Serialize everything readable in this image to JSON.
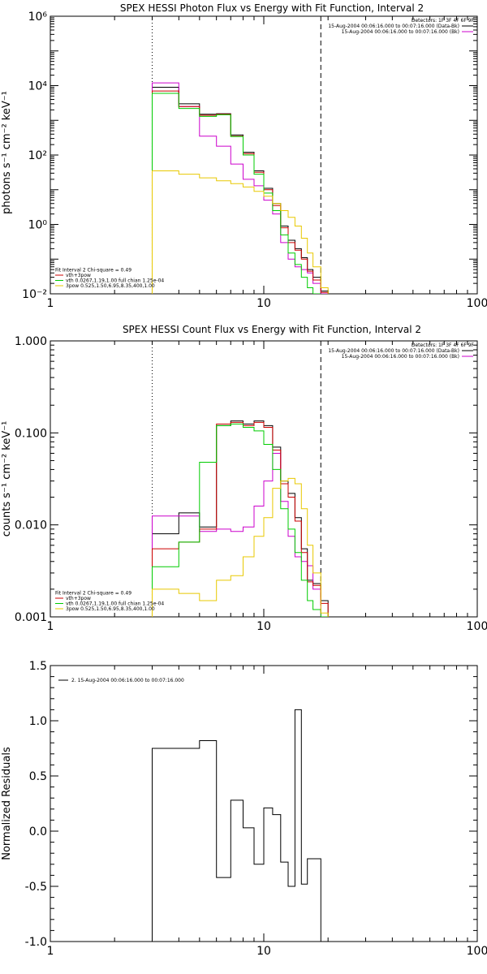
{
  "chart_data": [
    {
      "type": "line",
      "title": "SPEX HESSI Photon Flux vs Energy with Fit Function, Interval 2",
      "ylabel": "photons s⁻¹ cm⁻² keV⁻¹",
      "xlabel": "",
      "xscale": "log",
      "yscale": "log",
      "xlim": [
        1,
        100
      ],
      "ylim": [
        0.01,
        1000000
      ],
      "xticks": [
        "1",
        "10",
        "100"
      ],
      "yticks": [
        "10⁻²",
        "10⁰",
        "10²",
        "10⁴",
        "10⁶"
      ],
      "vlines": [
        {
          "x": 3,
          "style": "dotted"
        },
        {
          "x": 18.5,
          "style": "dashed"
        }
      ],
      "legend_top": {
        "header": "Detectors: 1F 3F 4F 6F 9F",
        "entries": [
          {
            "text": "15-Aug-2004 00:06:16.000 to 00:07:16.000 (Data-Bk)",
            "color": "#000000"
          },
          {
            "text": "15-Aug-2004 00:06:16.000 to 00:07:16.000 (Bk)",
            "color": "#cc00cc"
          }
        ]
      },
      "legend_bottom": {
        "header": "Fit Interval 2   Chi-square = 0.49",
        "entries": [
          {
            "text": "vth+3pow",
            "color": "#cc0000"
          },
          {
            "text": "vth 0.0267,1.19,1.00  full chian 1.25e-04",
            "color": "#00cc00"
          },
          {
            "text": "3pow 0.525,1.50,6.95,8.35,400,1.00",
            "color": "#e8c800"
          }
        ]
      },
      "bin_edges": [
        3,
        4,
        5,
        6,
        7,
        8,
        9,
        10,
        11,
        12,
        13,
        14,
        15,
        16,
        17,
        18.5,
        20,
        22
      ],
      "series": [
        {
          "name": "Data-Bk",
          "color": "#000000",
          "values": [
            9000,
            3000,
            1500,
            1550,
            380,
            120,
            35,
            11,
            4,
            0.9,
            0.35,
            0.2,
            0.11,
            0.05,
            0.03,
            0.012,
            null
          ]
        },
        {
          "name": "Bk",
          "color": "#cc00cc",
          "values": [
            12000,
            2500,
            350,
            180,
            55,
            20,
            13,
            5,
            2,
            0.3,
            0.1,
            0.06,
            0.05,
            0.04,
            0.02,
            0.008,
            null
          ]
        },
        {
          "name": "vth+3pow",
          "color": "#cc0000",
          "values": [
            7000,
            2500,
            1400,
            1500,
            350,
            110,
            32,
            10,
            3.5,
            0.8,
            0.3,
            0.18,
            0.1,
            0.045,
            0.025,
            0.011,
            null
          ]
        },
        {
          "name": "vth",
          "color": "#00cc00",
          "values": [
            6000,
            2200,
            1300,
            1450,
            340,
            100,
            28,
            8,
            2.5,
            0.5,
            0.15,
            0.07,
            0.03,
            0.015,
            0.008,
            null,
            null
          ]
        },
        {
          "name": "3pow",
          "color": "#e8c800",
          "values": [
            35,
            28,
            22,
            18,
            15,
            12,
            9,
            6.5,
            4,
            2.5,
            1.6,
            0.9,
            0.4,
            0.15,
            0.06,
            0.015,
            null
          ]
        }
      ]
    },
    {
      "type": "line",
      "title": "SPEX HESSI Count Flux vs Energy with Fit Function, Interval 2",
      "ylabel": "counts s⁻¹ cm⁻² keV⁻¹",
      "xlabel": "",
      "xscale": "log",
      "yscale": "log",
      "xlim": [
        1,
        100
      ],
      "ylim": [
        0.001,
        1
      ],
      "xticks": [
        "1",
        "10",
        "100"
      ],
      "yticks": [
        "0.001",
        "0.010",
        "0.100",
        "1.000"
      ],
      "vlines": [
        {
          "x": 3,
          "style": "dotted"
        },
        {
          "x": 18.5,
          "style": "dashed"
        }
      ],
      "legend_top": {
        "header": "Detectors: 1F 3F 4F 6F 9F",
        "entries": [
          {
            "text": "15-Aug-2004 00:06:16.000 to 00:07:16.000 (Data-Bk)",
            "color": "#000000"
          },
          {
            "text": "15-Aug-2004 00:06:16.000 to 00:07:16.000 (Bk)",
            "color": "#cc00cc"
          }
        ]
      },
      "legend_bottom": {
        "header": "Fit Interval 2   Chi-square = 0.49",
        "entries": [
          {
            "text": "vth+3pow",
            "color": "#cc0000"
          },
          {
            "text": "vth 0.0267,1.19,1.00  full chian 1.25e-04",
            "color": "#00cc00"
          },
          {
            "text": "3pow 0.525,1.50,6.95,8.35,400,1.00",
            "color": "#e8c800"
          }
        ]
      },
      "bin_edges": [
        3,
        4,
        5,
        6,
        7,
        8,
        9,
        10,
        11,
        12,
        13,
        14,
        15,
        16,
        17,
        18.5,
        20,
        22
      ],
      "series": [
        {
          "name": "Data-Bk",
          "color": "#000000",
          "values": [
            0.008,
            0.0135,
            0.0095,
            0.12,
            0.135,
            0.125,
            0.135,
            0.12,
            0.07,
            0.03,
            0.022,
            0.012,
            0.0055,
            0.0025,
            0.0023,
            0.0015,
            null
          ]
        },
        {
          "name": "Bk",
          "color": "#cc00cc",
          "values": [
            0.0125,
            0.0125,
            0.0085,
            0.009,
            0.0085,
            0.0095,
            0.016,
            0.03,
            0.06,
            0.018,
            0.0075,
            0.0045,
            0.004,
            0.0036,
            0.002,
            0.0009,
            null
          ]
        },
        {
          "name": "vth+3pow",
          "color": "#cc0000",
          "values": [
            0.0055,
            0.0065,
            0.009,
            0.125,
            0.13,
            0.12,
            0.13,
            0.115,
            0.065,
            0.028,
            0.02,
            0.011,
            0.005,
            0.0024,
            0.0022,
            0.0014,
            null
          ]
        },
        {
          "name": "vth",
          "color": "#00cc00",
          "values": [
            0.0035,
            0.0065,
            0.048,
            0.12,
            0.125,
            0.115,
            0.105,
            0.075,
            0.04,
            0.015,
            0.009,
            0.005,
            0.0025,
            0.0015,
            0.0012,
            0.0009,
            null
          ]
        },
        {
          "name": "3pow",
          "color": "#e8c800",
          "values": [
            0.002,
            0.0018,
            0.0015,
            0.0025,
            0.0028,
            0.0045,
            0.0075,
            0.012,
            0.025,
            0.03,
            0.032,
            0.028,
            0.015,
            0.006,
            0.003,
            0.0011,
            null
          ]
        }
      ]
    },
    {
      "type": "line",
      "title": "",
      "ylabel": "Normalized Residuals",
      "xlabel": "",
      "xscale": "log",
      "yscale": "linear",
      "xlim": [
        1,
        100
      ],
      "ylim": [
        -1.0,
        1.5
      ],
      "xticks": [
        "1",
        "10",
        "100"
      ],
      "yticks": [
        "-1.0",
        "-0.5",
        "0.0",
        "0.5",
        "1.0",
        "1.5"
      ],
      "legend_top": {
        "entries": [
          {
            "text": "2. 15-Aug-2004 00:06:16.000 to 00:07:16.000",
            "color": "#000000"
          }
        ]
      },
      "bin_edges": [
        3,
        4,
        5,
        6,
        7,
        8,
        9,
        10,
        11,
        12,
        13,
        14,
        15,
        16,
        17,
        18.5
      ],
      "series": [
        {
          "name": "",
          "color": "#000000",
          "values": [
            0.75,
            0.75,
            0.82,
            -0.42,
            0.28,
            0.03,
            -0.3,
            0.21,
            0.15,
            -0.28,
            -0.5,
            1.1,
            -0.48,
            -0.25,
            -0.25
          ]
        }
      ]
    }
  ]
}
